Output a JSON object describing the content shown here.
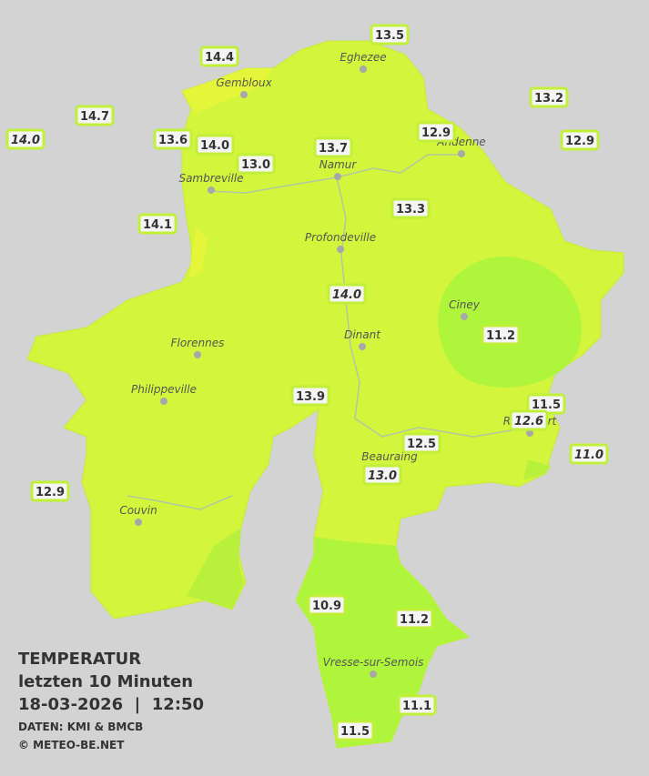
{
  "legend": {
    "title": "TEMPERATUR",
    "subtitle": "letzten 10 Minuten",
    "datetime": "18-03-2026  |  12:50",
    "source": "DATEN: KMI & BMCB",
    "copyright": "© METEO-BE.NET"
  },
  "towns": [
    "Eghezee",
    "Gembloux",
    "Andenne",
    "Namur",
    "Sambreville",
    "Profondeville",
    "Ciney",
    "Dinant",
    "Florennes",
    "Philippeville",
    "Beauraing",
    "Rochefort",
    "Couvin",
    "Vresse-sur-Semois"
  ],
  "stations": [
    "13.5",
    "14.4",
    "14.7",
    "14.0",
    "13.6",
    "14.0",
    "13.0",
    "13.7",
    "12.9",
    "13.2",
    "12.9",
    "14.1",
    "13.3",
    "14.0",
    "11.2",
    "13.9",
    "11.5",
    "12.6",
    "12.5",
    "13.0",
    "11.0",
    "12.9",
    "10.9",
    "11.2",
    "11.1",
    "11.5"
  ]
}
